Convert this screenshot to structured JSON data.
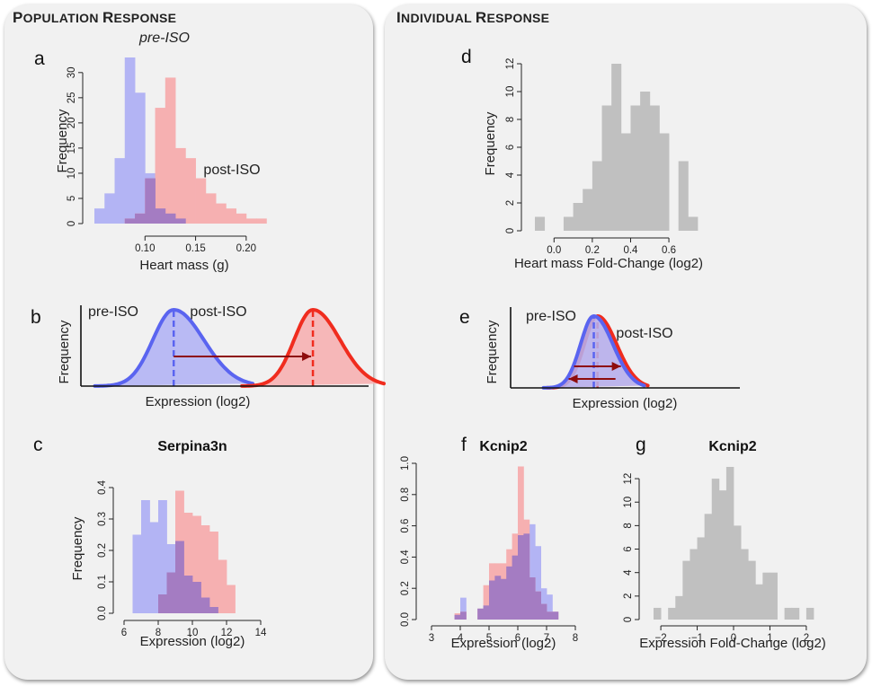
{
  "sections": {
    "left": {
      "title_first": "P",
      "title_rest": "OPULATION",
      "title2_first": "R",
      "title2_rest": "ESPONSE"
    },
    "right": {
      "title_first": "I",
      "title_rest": "NDIVIDUAL",
      "title2_first": "R",
      "title2_rest": "ESPONSE"
    }
  },
  "colors": {
    "pre": "#b3b4f4",
    "post": "#f6b0b1",
    "overlap": "#a47cc2",
    "gray": "#c0c0c0",
    "curve_pre": "#5a64f0",
    "curve_post": "#f02c1e",
    "arrow": "#8e0c0c"
  },
  "chart_data": [
    {
      "id": "a",
      "panel_label": "a",
      "type": "bar",
      "title": "",
      "xlabel": "Heart mass (g)",
      "ylabel": "Frequency",
      "xlim": [
        0.05,
        0.225
      ],
      "ylim": [
        0,
        33
      ],
      "xticks": [
        0.1,
        0.15,
        0.2
      ],
      "xtick_labels": [
        "0.10",
        "0.15",
        "0.20"
      ],
      "yticks": [
        0,
        5,
        10,
        15,
        20,
        25,
        30
      ],
      "ytick_labels": [
        "0",
        "5",
        "10",
        "15",
        "20",
        "25",
        "30"
      ],
      "bin_width": 0.01,
      "series": [
        {
          "name": "pre-ISO",
          "color": "#b3b4f4",
          "bin_starts": [
            0.05,
            0.06,
            0.07,
            0.08,
            0.09,
            0.1,
            0.11,
            0.12,
            0.13
          ],
          "values": [
            3,
            6,
            13,
            33,
            26,
            10,
            3,
            2,
            1
          ]
        },
        {
          "name": "post-ISO",
          "color": "#f6b0b1",
          "bin_starts": [
            0.08,
            0.09,
            0.1,
            0.11,
            0.12,
            0.13,
            0.14,
            0.15,
            0.16,
            0.17,
            0.18,
            0.19,
            0.2,
            0.21
          ],
          "values": [
            1,
            2,
            9,
            23,
            29,
            15,
            13,
            9,
            6,
            4,
            3,
            2,
            1,
            1
          ]
        }
      ],
      "annotations": [
        {
          "text": "pre-ISO",
          "italic": true
        },
        {
          "text": "post-ISO",
          "italic": false
        }
      ]
    },
    {
      "id": "d",
      "panel_label": "d",
      "type": "bar",
      "title": "",
      "xlabel": "Heart mass Fold-Change (log2)",
      "ylabel": "Frequency",
      "xlim": [
        -0.1,
        0.75
      ],
      "ylim": [
        0,
        12
      ],
      "xticks": [
        0.0,
        0.2,
        0.4,
        0.6
      ],
      "xtick_labels": [
        "0.0",
        "0.2",
        "0.4",
        "0.6"
      ],
      "yticks": [
        0,
        2,
        4,
        6,
        8,
        10,
        12
      ],
      "ytick_labels": [
        "0",
        "2",
        "4",
        "6",
        "8",
        "10",
        "12"
      ],
      "bin_width": 0.05,
      "series": [
        {
          "name": "",
          "color": "#c0c0c0",
          "bin_starts": [
            -0.1,
            -0.05,
            0.0,
            0.05,
            0.1,
            0.15,
            0.2,
            0.25,
            0.3,
            0.35,
            0.4,
            0.45,
            0.5,
            0.55,
            0.6,
            0.65,
            0.7
          ],
          "values": [
            1,
            0,
            0,
            1,
            2,
            3,
            5,
            9,
            12,
            7,
            9,
            10,
            9,
            7,
            0,
            5,
            1
          ]
        }
      ]
    },
    {
      "id": "b",
      "panel_label": "b",
      "type": "area",
      "title": "",
      "xlabel": "Expression (log2)",
      "ylabel": "Frequency",
      "series": [
        {
          "name": "pre-ISO",
          "mean": 2.0,
          "sd": 0.5,
          "color": "#5a64f0"
        },
        {
          "name": "post-ISO",
          "mean": 5.0,
          "sd": 0.45,
          "color": "#f02c1e"
        }
      ],
      "x_range": [
        0,
        6.2
      ]
    },
    {
      "id": "e",
      "panel_label": "e",
      "type": "area",
      "title": "",
      "xlabel": "Expression (log2)",
      "ylabel": "Frequency",
      "series": [
        {
          "name": "pre-ISO",
          "mean": 2.25,
          "sd": 0.4,
          "color": "#5a64f0"
        },
        {
          "name": "post-ISO",
          "mean": 2.35,
          "sd": 0.4,
          "color": "#f02c1e"
        }
      ],
      "x_range": [
        0,
        6.2
      ]
    },
    {
      "id": "c",
      "panel_label": "c",
      "type": "bar",
      "title": "Serpina3n",
      "xlabel": "Expression (log2)",
      "ylabel": "Frequency",
      "xlim": [
        6,
        14
      ],
      "ylim": [
        0,
        0.42
      ],
      "xticks": [
        6,
        8,
        10,
        12,
        14
      ],
      "xtick_labels": [
        "6",
        "8",
        "10",
        "12",
        "14"
      ],
      "yticks": [
        0.0,
        0.1,
        0.2,
        0.3,
        0.4
      ],
      "ytick_labels": [
        "0.0",
        "0.1",
        "0.2",
        "0.3",
        "0.4"
      ],
      "bin_width": 0.5,
      "series": [
        {
          "name": "pre-ISO",
          "color": "#b3b4f4",
          "bin_starts": [
            6.5,
            7.0,
            7.5,
            8.0,
            8.5,
            9.0,
            9.5,
            10.0,
            10.5,
            11.0
          ],
          "values": [
            0.25,
            0.36,
            0.29,
            0.36,
            0.22,
            0.23,
            0.12,
            0.1,
            0.05,
            0.02
          ]
        },
        {
          "name": "post-ISO",
          "color": "#f6b0b1",
          "bin_starts": [
            8.0,
            8.5,
            9.0,
            9.5,
            10.0,
            10.5,
            11.0,
            11.5,
            12.0
          ],
          "values": [
            0.06,
            0.13,
            0.39,
            0.32,
            0.31,
            0.28,
            0.26,
            0.17,
            0.09
          ]
        }
      ]
    },
    {
      "id": "f",
      "panel_label": "f",
      "type": "bar",
      "title": "Kcnip2",
      "xlabel": "Expression (log2)",
      "ylabel": "",
      "xlim": [
        3,
        8
      ],
      "ylim": [
        0,
        1.0
      ],
      "xticks": [
        3,
        4,
        5,
        6,
        7,
        8
      ],
      "xtick_labels": [
        "3",
        "4",
        "5",
        "6",
        "7",
        "8"
      ],
      "yticks": [
        0.0,
        0.2,
        0.4,
        0.6,
        0.8,
        1.0
      ],
      "ytick_labels": [
        "0.0",
        "0.2",
        "0.4",
        "0.6",
        "0.8",
        "1.0"
      ],
      "bin_width": 0.2,
      "series": [
        {
          "name": "pre-ISO",
          "color": "#b3b4f4",
          "bin_starts": [
            3.8,
            4.0,
            4.6,
            4.8,
            5.0,
            5.2,
            5.4,
            5.6,
            5.8,
            6.0,
            6.2,
            6.4,
            6.6,
            6.8,
            7.0,
            7.2
          ],
          "values": [
            0.03,
            0.14,
            0.07,
            0.09,
            0.25,
            0.28,
            0.26,
            0.34,
            0.41,
            0.54,
            0.55,
            0.61,
            0.47,
            0.2,
            0.16,
            0.05
          ]
        },
        {
          "name": "post-ISO",
          "color": "#f6b0b1",
          "bin_starts": [
            3.8,
            4.0,
            4.6,
            4.8,
            5.0,
            5.2,
            5.4,
            5.6,
            5.8,
            6.0,
            6.2,
            6.4,
            6.6,
            6.8,
            7.0,
            7.2
          ],
          "values": [
            0.04,
            0.05,
            0.07,
            0.22,
            0.36,
            0.36,
            0.36,
            0.45,
            0.55,
            0.98,
            0.64,
            0.27,
            0.18,
            0.1,
            0.05,
            0.05
          ]
        }
      ]
    },
    {
      "id": "g",
      "panel_label": "g",
      "type": "bar",
      "title": "Kcnip2",
      "xlabel": "Expression Fold-Change (log2)",
      "ylabel": "",
      "xlim": [
        -2.2,
        2.2
      ],
      "ylim": [
        0,
        13
      ],
      "xticks": [
        -2,
        -1,
        0,
        1,
        2
      ],
      "xtick_labels": [
        "−2",
        "−1",
        "0",
        "1",
        "2"
      ],
      "yticks": [
        0,
        2,
        4,
        6,
        8,
        10,
        12
      ],
      "ytick_labels": [
        "0",
        "2",
        "4",
        "6",
        "8",
        "10",
        "12"
      ],
      "bin_width": 0.2,
      "series": [
        {
          "name": "",
          "color": "#c0c0c0",
          "bin_starts": [
            -2.2,
            -2.0,
            -1.8,
            -1.6,
            -1.4,
            -1.2,
            -1.0,
            -0.8,
            -0.6,
            -0.4,
            -0.2,
            0.0,
            0.2,
            0.4,
            0.6,
            0.8,
            1.0,
            1.2,
            1.4,
            1.6,
            1.8,
            2.0
          ],
          "values": [
            1,
            0,
            1,
            2,
            5,
            6,
            7,
            9,
            12,
            11,
            13,
            8,
            6,
            5,
            3,
            4,
            4,
            0,
            1,
            1,
            0,
            1
          ]
        }
      ]
    }
  ]
}
